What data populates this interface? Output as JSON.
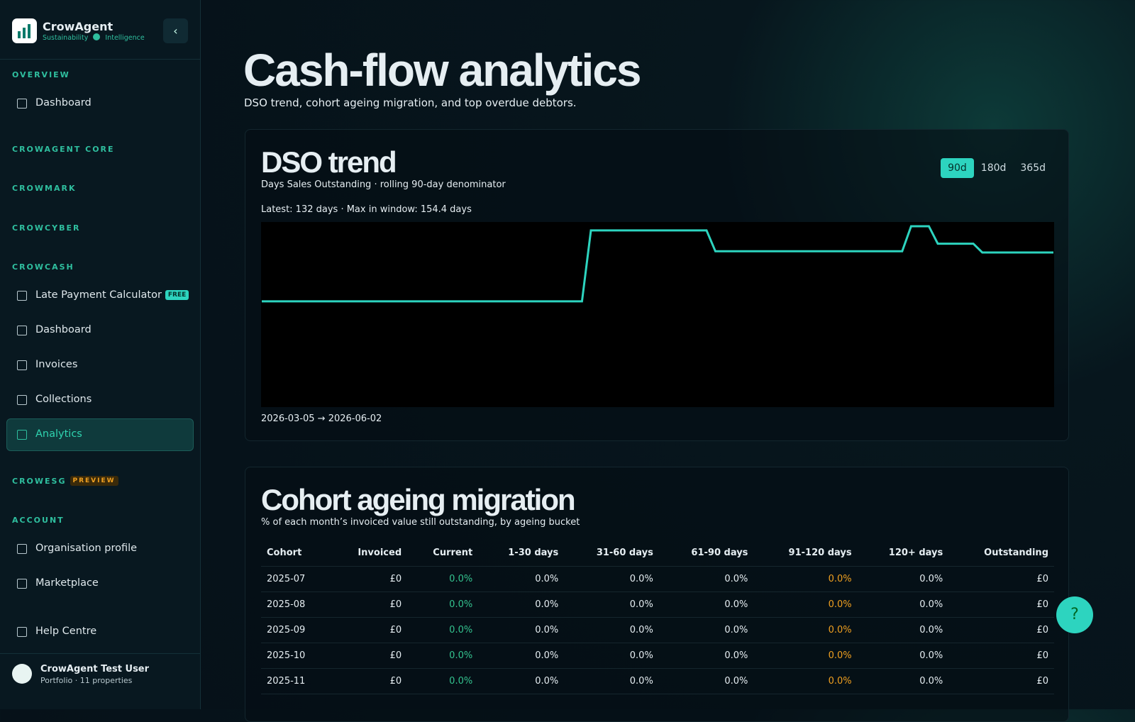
{
  "sidebar": {
    "brand": {
      "name": "CrowAgent",
      "tag1": "Sustainability",
      "tag2": "Intelligence"
    },
    "items": [
      {
        "kind": "section",
        "label": "OVERVIEW"
      },
      {
        "kind": "link",
        "label": "Dashboard"
      },
      {
        "kind": "section",
        "label": "CROWAGENT CORE"
      },
      {
        "kind": "section",
        "label": "CROWMARK"
      },
      {
        "kind": "section",
        "label": "CROWCYBER"
      },
      {
        "kind": "section",
        "label": "CROWCASH"
      },
      {
        "kind": "link",
        "label": "Late Payment Calculator",
        "badge": "FREE"
      },
      {
        "kind": "link",
        "label": "Dashboard"
      },
      {
        "kind": "link",
        "label": "Invoices"
      },
      {
        "kind": "link",
        "label": "Collections"
      },
      {
        "kind": "link",
        "label": "Analytics",
        "active": true
      },
      {
        "kind": "section",
        "label": "CROWESG",
        "badge": "PREVIEW"
      },
      {
        "kind": "section",
        "label": "ACCOUNT"
      },
      {
        "kind": "link",
        "label": "Organisation profile"
      },
      {
        "kind": "link",
        "label": "Marketplace"
      },
      {
        "kind": "link",
        "label": "Help Centre"
      }
    ],
    "user": {
      "name": "CrowAgent Test User",
      "meta": "Portfolio · 11 properties"
    }
  },
  "header": {
    "title": "Cash-flow analytics",
    "subtitle": "DSO trend, cohort ageing migration, and top overdue debtors."
  },
  "dso": {
    "title": "DSO trend",
    "subtitle": "Days Sales Outstanding · rolling 90-day denominator",
    "ranges": [
      "90d",
      "180d",
      "365d"
    ],
    "active_range": 0,
    "summary": "Latest: 132 days · Max in window: 154.4 days",
    "period": "2026-03-05 → 2026-06-02"
  },
  "chart_data": {
    "type": "line",
    "color": "#2dd4bf",
    "values": [
      90.3,
      90.3,
      90.3,
      90.3,
      90.3,
      90.3,
      90.3,
      90.3,
      90.3,
      90.3,
      90.3,
      90.3,
      90.3,
      90.3,
      90.3,
      90.3,
      90.3,
      90.3,
      90.3,
      90.3,
      90.3,
      90.3,
      90.3,
      90.3,
      90.3,
      90.3,
      90.3,
      90.3,
      90.3,
      90.3,
      90.3,
      90.3,
      90.3,
      90.3,
      90.3,
      90.3,
      90.3,
      150.8,
      150.8,
      150.8,
      150.8,
      150.8,
      150.8,
      150.8,
      150.8,
      150.8,
      150.8,
      150.8,
      150.8,
      150.8,
      150.8,
      133,
      133,
      133,
      133,
      133,
      133,
      133,
      133,
      133,
      133,
      133,
      133,
      133,
      133,
      133,
      133,
      133,
      133,
      133,
      133,
      133,
      133,
      154.4,
      154.4,
      154.4,
      139.5,
      139.5,
      139.5,
      139.5,
      139.5,
      132,
      132,
      132,
      132,
      132,
      132,
      132,
      132,
      132
    ]
  },
  "cohort": {
    "title": "Cohort ageing migration",
    "subtitle": "% of each month’s invoiced value still outstanding, by ageing bucket",
    "columns": [
      "Cohort",
      "Invoiced",
      "Current",
      "1-30 days",
      "31-60 days",
      "61-90 days",
      "91-120 days",
      "120+ days",
      "Outstanding"
    ],
    "rows": [
      [
        "2025-07",
        "£0",
        "0.0%",
        "0.0%",
        "0.0%",
        "0.0%",
        "0.0%",
        "0.0%",
        "£0"
      ],
      [
        "2025-08",
        "£0",
        "0.0%",
        "0.0%",
        "0.0%",
        "0.0%",
        "0.0%",
        "0.0%",
        "£0"
      ],
      [
        "2025-09",
        "£0",
        "0.0%",
        "0.0%",
        "0.0%",
        "0.0%",
        "0.0%",
        "0.0%",
        "£0"
      ],
      [
        "2025-10",
        "£0",
        "0.0%",
        "0.0%",
        "0.0%",
        "0.0%",
        "0.0%",
        "0.0%",
        "£0"
      ],
      [
        "2025-11",
        "£0",
        "0.0%",
        "0.0%",
        "0.0%",
        "0.0%",
        "0.0%",
        "0.0%",
        "£0"
      ]
    ]
  },
  "help_button": "?"
}
